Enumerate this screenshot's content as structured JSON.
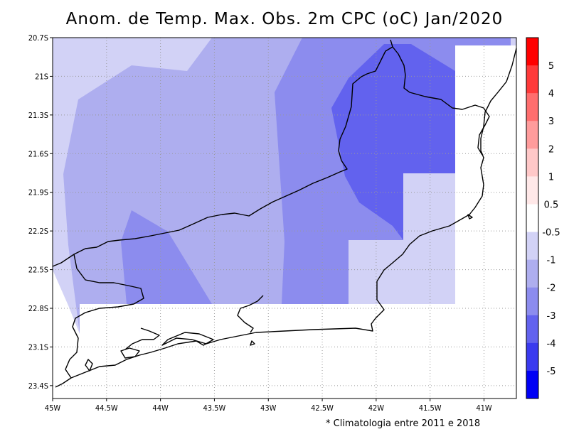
{
  "title": "Anom. de Temp. Max. Obs. 2m CPC (oC) Jan/2020",
  "footnote": "* Climatologia entre 2011 e 2018",
  "map": {
    "lon_range": [
      -45,
      -40.7
    ],
    "lat_range": [
      -23.5,
      -20.7
    ],
    "lon_ticks": [
      "45W",
      "44.5W",
      "44W",
      "43.5W",
      "43W",
      "42.5W",
      "42W",
      "41.5W",
      "41W"
    ],
    "lat_ticks": [
      "20.7S",
      "21S",
      "21.3S",
      "21.6S",
      "21.9S",
      "22.2S",
      "22.5S",
      "22.8S",
      "23.1S",
      "23.4S"
    ],
    "grid": "dotted"
  },
  "colorbar": {
    "labels": [
      "5",
      "4",
      "3",
      "2",
      "1",
      "0.5",
      "-0.5",
      "-1",
      "-2",
      "-3",
      "-4",
      "-5"
    ],
    "colors": [
      "#ff0000",
      "#ff3a3a",
      "#ff6e6e",
      "#ff9c9c",
      "#ffc8c8",
      "#ffe8e8",
      "#ffffff",
      "#d2d2f6",
      "#aeaeef",
      "#8c8cee",
      "#6262ee",
      "#3a3aef",
      "#0000f5"
    ]
  },
  "anomaly_colors": {
    "c1": "#d2d2f6",
    "c2": "#aeaeef",
    "c3": "#8c8cee",
    "c4": "#6262ee"
  }
}
